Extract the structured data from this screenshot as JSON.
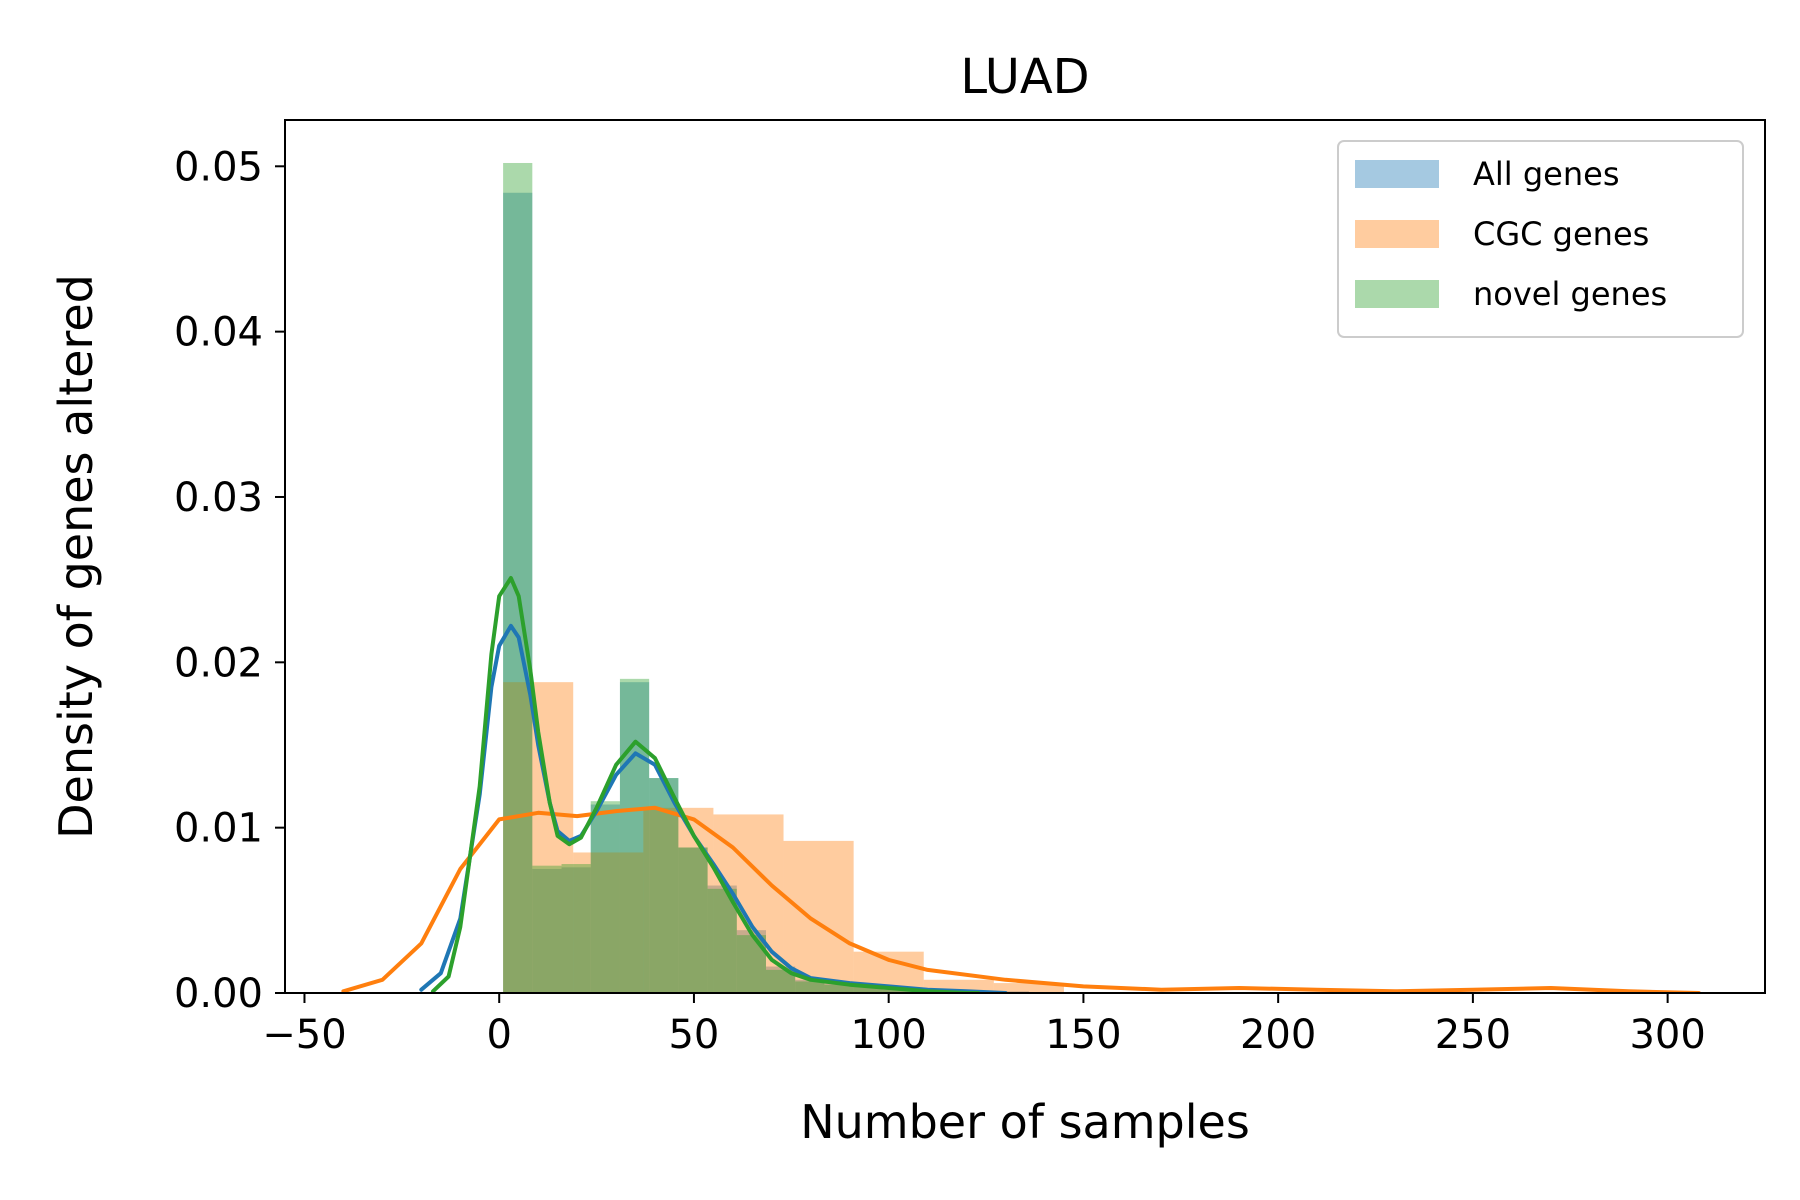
{
  "chart_data": {
    "type": "histogram",
    "title": "LUAD",
    "xlabel": "Number of samples",
    "ylabel": "Density of genes altered",
    "xlim": [
      -55,
      325
    ],
    "ylim": [
      0,
      0.0528
    ],
    "xticks": [
      -50,
      0,
      50,
      100,
      150,
      200,
      250,
      300
    ],
    "xtick_labels": [
      "−50",
      "0",
      "50",
      "100",
      "150",
      "200",
      "250",
      "300"
    ],
    "yticks": [
      0.0,
      0.01,
      0.02,
      0.03,
      0.04,
      0.05
    ],
    "ytick_labels": [
      "0.00",
      "0.01",
      "0.02",
      "0.03",
      "0.04",
      "0.05"
    ],
    "grid": false,
    "legend_position": "top-right",
    "legend": [
      "All genes",
      "CGC genes",
      "novel genes"
    ],
    "colors": {
      "all_genes": "#1f77b4",
      "cgc_genes": "#ff7f0e",
      "novel_genes": "#2ca02c"
    },
    "series": [
      {
        "name": "All genes",
        "histogram": {
          "bin_edges": [
            1,
            8.5,
            16,
            23.5,
            31,
            38.5,
            46,
            53.5,
            61,
            68.5,
            76,
            83.5,
            91,
            98.5,
            106,
            113.5,
            121,
            128.5,
            136
          ],
          "densities": [
            0.0484,
            0.0075,
            0.0076,
            0.0114,
            0.0188,
            0.013,
            0.0088,
            0.0065,
            0.0038,
            0.0016,
            0.0008,
            0.0006,
            0.0005,
            0.0003,
            0.0002,
            0.0001,
            0.0001,
            0.0001
          ]
        },
        "kde": {
          "x": [
            -20,
            -15,
            -10,
            -5,
            -2,
            0,
            3,
            5,
            8,
            10,
            13,
            15,
            18,
            21,
            25,
            30,
            35,
            40,
            45,
            50,
            55,
            60,
            65,
            70,
            75,
            80,
            90,
            100,
            110,
            120,
            130
          ],
          "y": [
            0.0002,
            0.0012,
            0.0045,
            0.012,
            0.0185,
            0.021,
            0.0222,
            0.0215,
            0.018,
            0.015,
            0.0115,
            0.0098,
            0.0092,
            0.0095,
            0.011,
            0.0132,
            0.0145,
            0.0138,
            0.0115,
            0.0095,
            0.0078,
            0.006,
            0.004,
            0.0025,
            0.0015,
            0.0009,
            0.0006,
            0.0004,
            0.0002,
            0.0001,
            0.0
          ]
        }
      },
      {
        "name": "CGC genes",
        "histogram": {
          "bin_edges": [
            1,
            19,
            37,
            55,
            73,
            91,
            109,
            127,
            145
          ],
          "densities": [
            0.0188,
            0.0085,
            0.0112,
            0.0108,
            0.0092,
            0.0025,
            0.0008,
            0.0006
          ]
        },
        "kde": {
          "x": [
            -40,
            -30,
            -20,
            -10,
            0,
            10,
            20,
            30,
            40,
            50,
            60,
            70,
            80,
            90,
            100,
            110,
            130,
            150,
            170,
            190,
            210,
            230,
            250,
            270,
            290,
            308
          ],
          "y": [
            0.0001,
            0.0008,
            0.003,
            0.0075,
            0.0105,
            0.0109,
            0.0107,
            0.011,
            0.0112,
            0.0105,
            0.0088,
            0.0065,
            0.0045,
            0.003,
            0.002,
            0.0014,
            0.0008,
            0.0004,
            0.0002,
            0.0003,
            0.0002,
            0.0001,
            0.0002,
            0.0003,
            0.0001,
            0.0
          ]
        }
      },
      {
        "name": "novel genes",
        "histogram": {
          "bin_edges": [
            1,
            8.5,
            16,
            23.5,
            31,
            38.5,
            46,
            53.5,
            61,
            68.5,
            76,
            83.5,
            91,
            98.5,
            106,
            113.5,
            121
          ],
          "densities": [
            0.0502,
            0.0077,
            0.0078,
            0.0116,
            0.019,
            0.013,
            0.0088,
            0.0063,
            0.0035,
            0.0014,
            0.0007,
            0.0005,
            0.0004,
            0.0002,
            0.0001,
            0.0001
          ]
        },
        "kde": {
          "x": [
            -17,
            -13,
            -10,
            -5,
            -2,
            0,
            3,
            5,
            8,
            10,
            13,
            15,
            18,
            21,
            25,
            30,
            35,
            40,
            45,
            50,
            55,
            60,
            65,
            70,
            75,
            80,
            90,
            100,
            110,
            120,
            123
          ],
          "y": [
            0.0001,
            0.001,
            0.004,
            0.0125,
            0.0205,
            0.024,
            0.0251,
            0.024,
            0.0195,
            0.0158,
            0.0115,
            0.0095,
            0.009,
            0.0094,
            0.0112,
            0.0138,
            0.0152,
            0.0142,
            0.0118,
            0.0095,
            0.0076,
            0.0055,
            0.0035,
            0.002,
            0.0012,
            0.0008,
            0.0005,
            0.0003,
            0.0001,
            0.0,
            0.0
          ]
        }
      }
    ]
  }
}
